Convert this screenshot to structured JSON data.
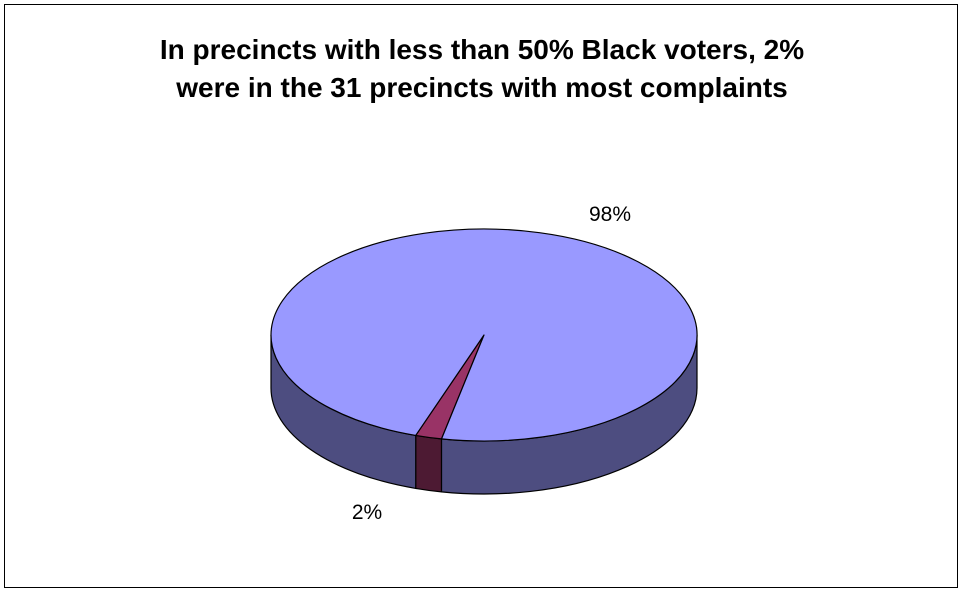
{
  "chart_data": {
    "type": "pie",
    "title": "In precincts with less than 50% Black voters, 2% were in the 31 precincts with most complaints",
    "title_lines": [
      "In precincts with less than 50% Black voters, 2%",
      "were in the 31 precincts with most complaints"
    ],
    "three_d": true,
    "legend": "none",
    "slices": [
      {
        "value": 98,
        "label": "98%",
        "color": "#9999ff",
        "side_color": "#4d4d80"
      },
      {
        "value": 2,
        "label": "2%",
        "color": "#993366",
        "side_color": "#4d1a33"
      }
    ]
  }
}
